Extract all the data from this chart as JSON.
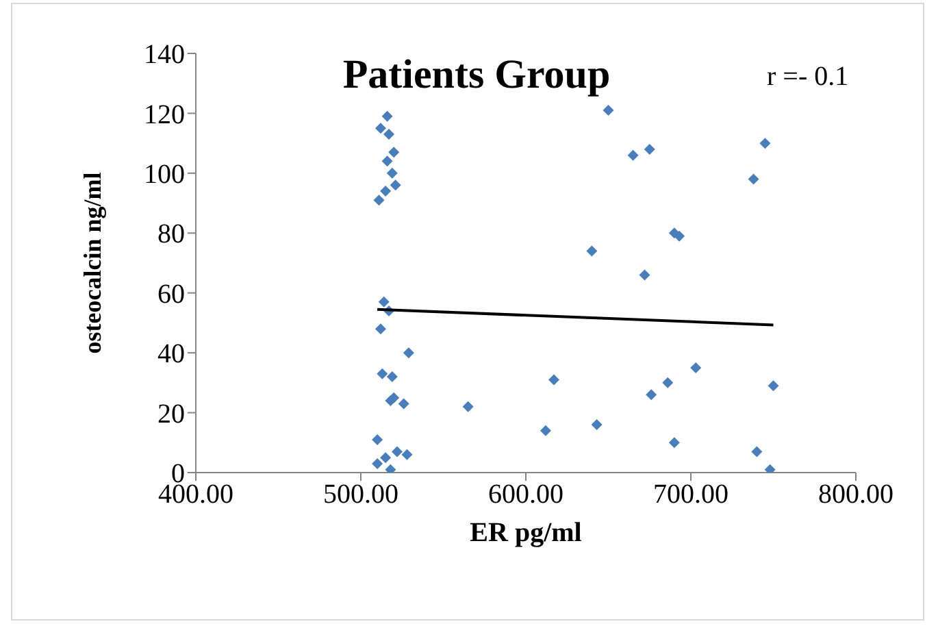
{
  "chart_data": {
    "type": "scatter",
    "title": "Patients Group",
    "xlabel": "ER pg/ml",
    "ylabel": "osteocalcin  ng/ml",
    "annotations": [
      "r =- 0.1"
    ],
    "series": [
      {
        "color": "#4a7ebb",
        "marker": "diamond",
        "x": [
          516,
          512,
          517,
          520,
          516,
          519,
          521,
          515,
          511,
          514,
          517,
          512,
          529,
          513,
          519,
          520,
          518,
          526,
          510,
          522,
          528,
          515,
          510,
          518,
          650,
          665,
          675,
          745,
          738,
          640,
          690,
          693,
          672,
          617,
          565,
          612,
          643,
          676,
          686,
          703,
          690,
          740,
          748,
          750
        ],
        "values": [
          119,
          115,
          113,
          107,
          104,
          100,
          96,
          94,
          91,
          57,
          54,
          48,
          40,
          33,
          32,
          25,
          24,
          23,
          11,
          7,
          6,
          5,
          3,
          1,
          121,
          106,
          108,
          110,
          98,
          74,
          80,
          79,
          66,
          31,
          22,
          14,
          16,
          26,
          30,
          35,
          10,
          7,
          1,
          29
        ]
      },
      {
        "type": "line",
        "color": "#000000",
        "marker": "none",
        "x": [
          510,
          750
        ],
        "values": [
          54.5,
          49.3
        ]
      }
    ],
    "xlim": [
      400,
      800
    ],
    "xticks": [
      {
        "value": 400,
        "label": "400.00"
      },
      {
        "value": 500,
        "label": "500.00"
      },
      {
        "value": 600,
        "label": "600.00"
      },
      {
        "value": 700,
        "label": "700.00"
      },
      {
        "value": 800,
        "label": "800.00"
      }
    ],
    "ylim": [
      0,
      140
    ],
    "yticks": [
      0,
      20,
      40,
      60,
      80,
      100,
      120,
      140
    ]
  }
}
